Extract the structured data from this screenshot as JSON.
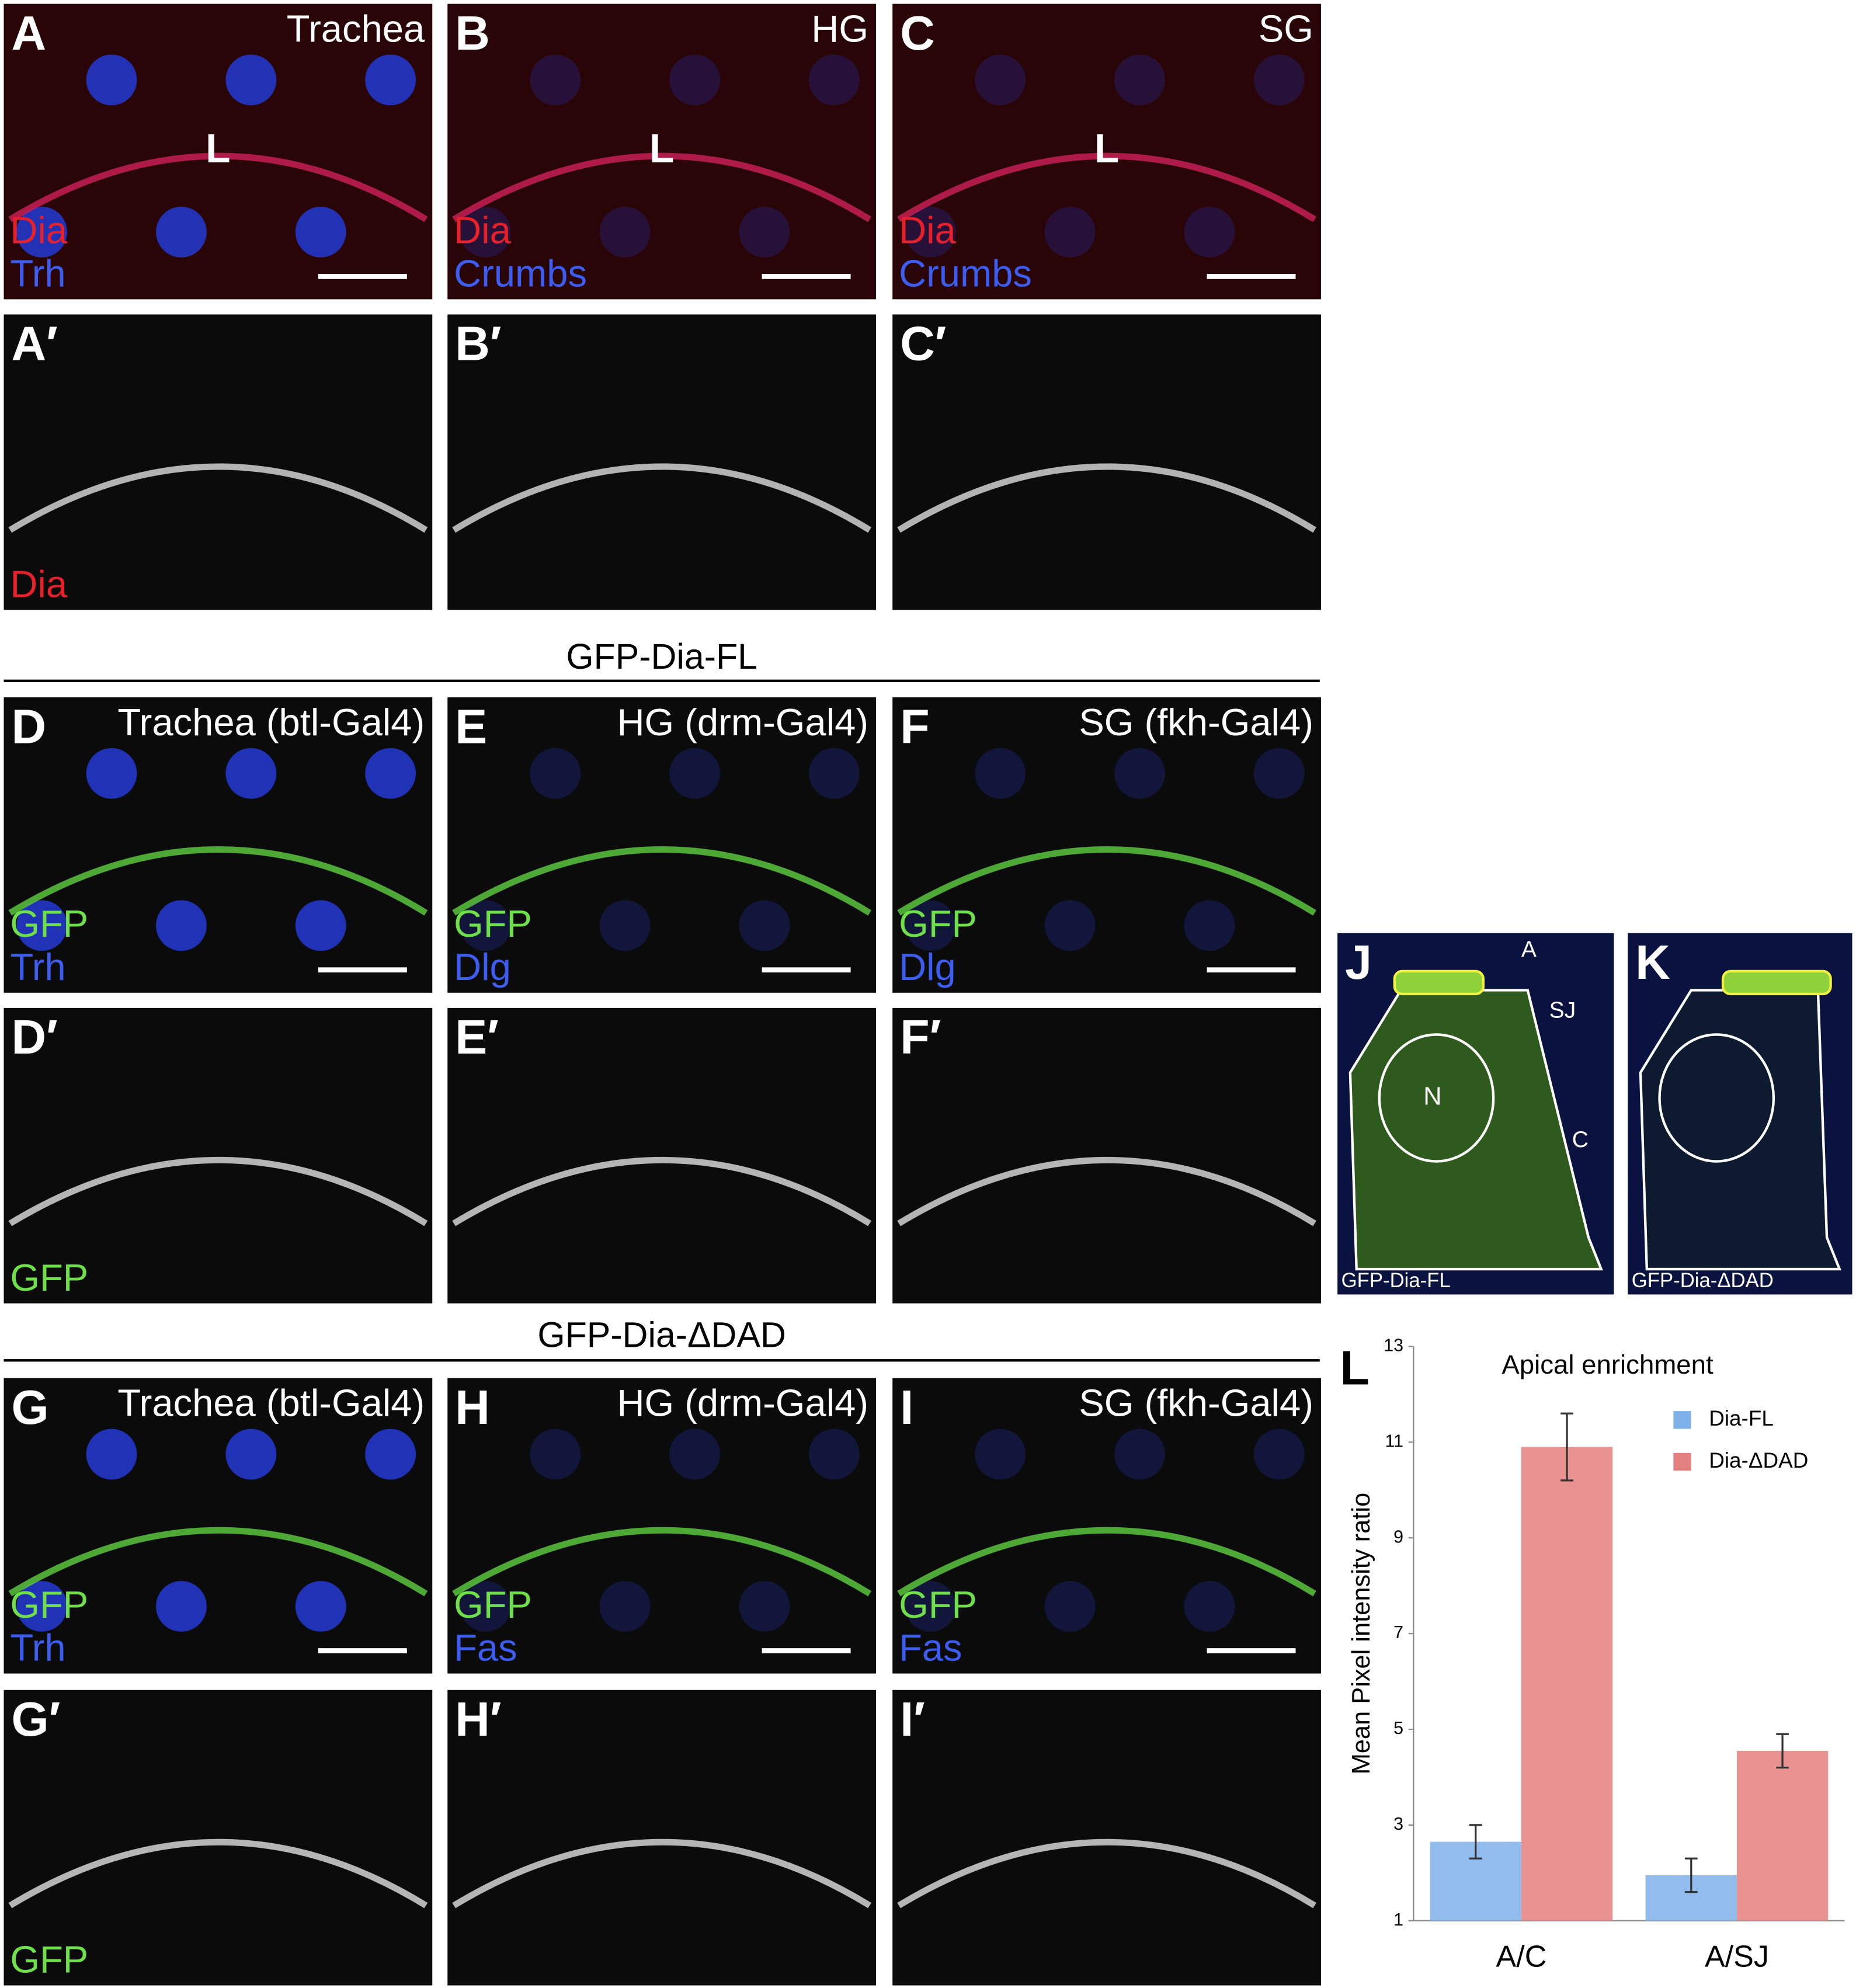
{
  "panels": [
    {
      "label": "A",
      "tissue": "Trachea",
      "annotations": [
        "L"
      ],
      "channels": [
        {
          "name": "Dia",
          "color": "#e8202a"
        },
        {
          "name": "Trh",
          "color": "#3d5df0"
        }
      ]
    },
    {
      "label": "B",
      "tissue": "HG",
      "annotations": [
        "L"
      ],
      "channels": [
        {
          "name": "Dia",
          "color": "#e8202a"
        },
        {
          "name": "Crumbs",
          "color": "#3d5df0"
        }
      ]
    },
    {
      "label": "C",
      "tissue": "SG",
      "annotations": [
        "L"
      ],
      "channels": [
        {
          "name": "Dia",
          "color": "#e8202a"
        },
        {
          "name": "Crumbs",
          "color": "#3d5df0"
        }
      ]
    },
    {
      "label": "A′",
      "channels": [
        {
          "name": "Dia",
          "color": "#e8202a"
        }
      ]
    },
    {
      "label": "B′"
    },
    {
      "label": "C′"
    },
    {
      "label": "D",
      "tissue": "Trachea (btl-Gal4)",
      "channels": [
        {
          "name": "GFP",
          "color": "#6ee04a"
        },
        {
          "name": "Trh",
          "color": "#3d5df0"
        }
      ]
    },
    {
      "label": "E",
      "tissue": "HG (drm-Gal4)",
      "channels": [
        {
          "name": "GFP",
          "color": "#6ee04a"
        },
        {
          "name": "Dlg",
          "color": "#3d5df0"
        }
      ]
    },
    {
      "label": "F",
      "tissue": "SG (fkh-Gal4)",
      "channels": [
        {
          "name": "GFP",
          "color": "#6ee04a"
        },
        {
          "name": "Dlg",
          "color": "#3d5df0"
        }
      ]
    },
    {
      "label": "D′",
      "channels": [
        {
          "name": "GFP",
          "color": "#6ee04a"
        }
      ]
    },
    {
      "label": "E′"
    },
    {
      "label": "F′"
    },
    {
      "label": "G",
      "tissue": "Trachea (btl-Gal4)",
      "channels": [
        {
          "name": "GFP",
          "color": "#6ee04a"
        },
        {
          "name": "Trh",
          "color": "#3d5df0"
        }
      ]
    },
    {
      "label": "H",
      "tissue": "HG (drm-Gal4)",
      "channels": [
        {
          "name": "GFP",
          "color": "#6ee04a"
        },
        {
          "name": "Fas",
          "color": "#3d5df0"
        }
      ]
    },
    {
      "label": "I",
      "tissue": "SG (fkh-Gal4)",
      "channels": [
        {
          "name": "GFP",
          "color": "#6ee04a"
        },
        {
          "name": "Fas",
          "color": "#3d5df0"
        }
      ]
    },
    {
      "label": "G′",
      "channels": [
        {
          "name": "GFP",
          "color": "#6ee04a"
        }
      ]
    },
    {
      "label": "H′"
    },
    {
      "label": "I′"
    }
  ],
  "section_titles": [
    "GFP-Dia-FL",
    "GFP-Dia-ΔDAD"
  ],
  "cell_panels": [
    {
      "label": "J",
      "annotations": [
        "A",
        "SJ",
        "N",
        "C"
      ],
      "caption": "GFP-Dia-FL"
    },
    {
      "label": "K",
      "caption": "GFP-Dia-ΔDAD"
    }
  ],
  "chart_data": {
    "type": "bar",
    "panel_label": "L",
    "title": "Apical enrichment",
    "y_label": "Mean Pixel intensity ratio",
    "categories": [
      "A/C",
      "A/SJ"
    ],
    "series": [
      {
        "name": "Dia-FL",
        "color": "#7eb0ea",
        "values": [
          2.65,
          1.95
        ],
        "errors": [
          0.35,
          0.35
        ]
      },
      {
        "name": "Dia-ΔDAD",
        "color": "#e4807f",
        "values": [
          10.9,
          4.55
        ],
        "errors": [
          0.7,
          0.35
        ]
      }
    ],
    "ylim": [
      1,
      13
    ],
    "yticks": [
      1,
      3,
      5,
      7,
      9,
      11,
      13
    ],
    "legend": "upper right"
  }
}
